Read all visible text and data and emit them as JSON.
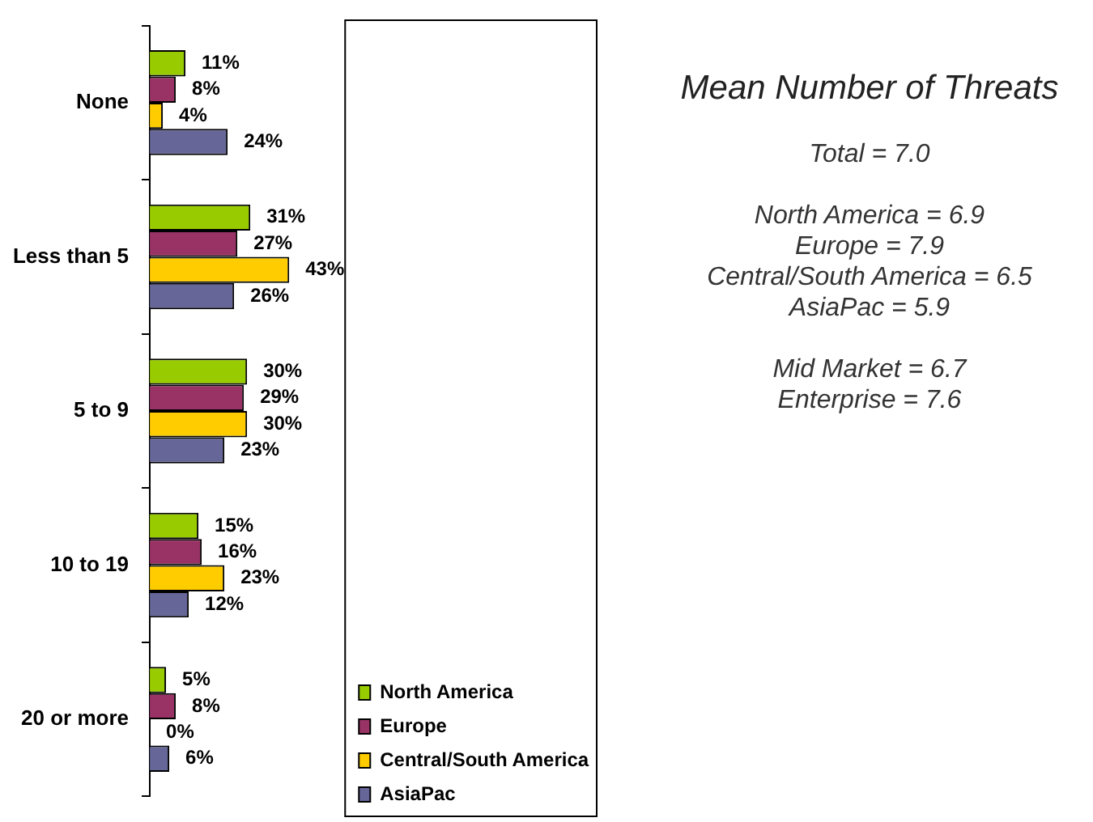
{
  "chart_data": {
    "type": "bar",
    "orientation": "horizontal",
    "categories": [
      "None",
      "Less than 5",
      "5 to 9",
      "10 to 19",
      "20 or more"
    ],
    "series": [
      {
        "name": "North America",
        "color": "#99cc00",
        "values": [
          11,
          31,
          30,
          15,
          5
        ],
        "value_labels": [
          "11%",
          "31%",
          "30%",
          "15%",
          "5%"
        ]
      },
      {
        "name": "Europe",
        "color": "#993366",
        "values": [
          8,
          27,
          29,
          16,
          8
        ],
        "value_labels": [
          "8%",
          "27%",
          "29%",
          "16%",
          "8%"
        ]
      },
      {
        "name": "Central/South America",
        "color": "#ffcc00",
        "values": [
          4,
          43,
          30,
          23,
          0
        ],
        "value_labels": [
          "4%",
          "43%",
          "30%",
          "23%",
          "0%"
        ]
      },
      {
        "name": "AsiaPac",
        "color": "#666699",
        "values": [
          24,
          26,
          23,
          12,
          6
        ],
        "value_labels": [
          "24%",
          "26%",
          "23%",
          "12%",
          "6%"
        ]
      }
    ],
    "legend": "bottom right",
    "grid": false,
    "tick_labels": "y",
    "annotations": [
      "Mean Number of Threats",
      "Total = 7.0",
      "North America = 6.9\nEurope = 7.9\nCentral/South America = 6.5\nAsiaPac = 5.9",
      "Mid Market = 6.7\nEnterprise = 7.6"
    ]
  }
}
